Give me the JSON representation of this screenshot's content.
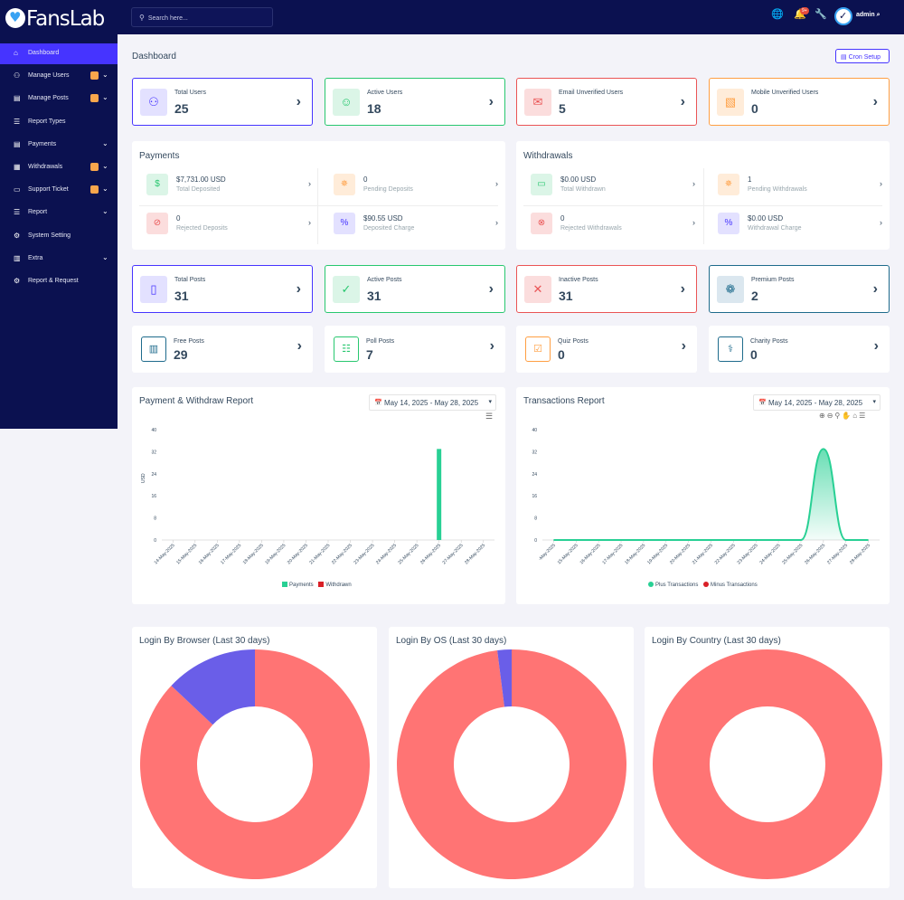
{
  "app": {
    "logo": "FansLab"
  },
  "header": {
    "search_placeholder": "Search here...",
    "notif_count": "9+",
    "user": "admin"
  },
  "sidebar": {
    "items": [
      {
        "label": "Dashboard",
        "icon": "home-icon",
        "active": true
      },
      {
        "label": "Manage Users",
        "icon": "users-icon",
        "badge": true,
        "chevron": true
      },
      {
        "label": "Manage Posts",
        "icon": "posts-icon",
        "badge": true,
        "chevron": true
      },
      {
        "label": "Report Types",
        "icon": "list-icon"
      },
      {
        "label": "Payments",
        "icon": "payments-icon",
        "chevron": true
      },
      {
        "label": "Withdrawals",
        "icon": "bank-icon",
        "badge": true,
        "chevron": true
      },
      {
        "label": "Support Ticket",
        "icon": "ticket-icon",
        "badge": true,
        "chevron": true
      },
      {
        "label": "Report",
        "icon": "report-icon",
        "chevron": true
      },
      {
        "label": "System Setting",
        "icon": "gear-icon"
      },
      {
        "label": "Extra",
        "icon": "extra-icon",
        "chevron": true
      },
      {
        "label": "Report & Request",
        "icon": "bug-icon"
      }
    ]
  },
  "page": {
    "title": "Dashboard",
    "cron_button": "Cron Setup"
  },
  "user_stats": [
    {
      "label": "Total Users",
      "value": "25",
      "color": "#4634ff",
      "bg": "#e3e1ff",
      "icon": "users-icon"
    },
    {
      "label": "Active Users",
      "value": "18",
      "color": "#28c76f",
      "bg": "#dbf5e7",
      "icon": "user-check-icon"
    },
    {
      "label": "Email Unverified Users",
      "value": "5",
      "color": "#ea5455",
      "bg": "#fbdddd",
      "icon": "envelope-icon"
    },
    {
      "label": "Mobile Unverified Users",
      "value": "0",
      "color": "#ff9f43",
      "bg": "#ffecd9",
      "icon": "mobile-off-icon"
    }
  ],
  "payments": {
    "title": "Payments",
    "items": [
      {
        "value": "$7,731.00 USD",
        "label": "Total Deposited",
        "color": "#28c76f",
        "bg": "#dbf5e7",
        "icon": "hand-money-icon"
      },
      {
        "value": "0",
        "label": "Pending Deposits",
        "color": "#ff9f43",
        "bg": "#ffecd9",
        "icon": "spinner-icon"
      },
      {
        "value": "0",
        "label": "Rejected Deposits",
        "color": "#ea5455",
        "bg": "#fbdddd",
        "icon": "ban-icon"
      },
      {
        "value": "$90.55 USD",
        "label": "Deposited Charge",
        "color": "#4634ff",
        "bg": "#e3e1ff",
        "icon": "percent-icon"
      }
    ]
  },
  "withdrawals": {
    "title": "Withdrawals",
    "items": [
      {
        "value": "$0.00 USD",
        "label": "Total Withdrawn",
        "color": "#28c76f",
        "bg": "#dbf5e7",
        "icon": "wallet-icon"
      },
      {
        "value": "1",
        "label": "Pending Withdrawals",
        "color": "#ff9f43",
        "bg": "#ffecd9",
        "icon": "spinner-icon"
      },
      {
        "value": "0",
        "label": "Rejected Withdrawals",
        "color": "#ea5455",
        "bg": "#fbdddd",
        "icon": "x-circle-icon"
      },
      {
        "value": "$0.00 USD",
        "label": "Withdrawal Charge",
        "color": "#4634ff",
        "bg": "#e3e1ff",
        "icon": "percent-icon"
      }
    ]
  },
  "post_stats": [
    {
      "label": "Total Posts",
      "value": "31",
      "color": "#4634ff",
      "bg": "#e3e1ff",
      "icon": "tablet-icon"
    },
    {
      "label": "Active Posts",
      "value": "31",
      "color": "#28c76f",
      "bg": "#dbf5e7",
      "icon": "double-check-icon"
    },
    {
      "label": "Inactive Posts",
      "value": "31",
      "color": "#ea5455",
      "bg": "#fbdddd",
      "icon": "x-icon"
    },
    {
      "label": "Premium Posts",
      "value": "2",
      "color": "#1e6b8c",
      "bg": "#dbe7ef",
      "icon": "award-icon"
    }
  ],
  "post_stats_small": [
    {
      "label": "Free Posts",
      "value": "29",
      "color": "#1e6b8c",
      "icon": "book-icon"
    },
    {
      "label": "Poll Posts",
      "value": "7",
      "color": "#28c76f",
      "icon": "poll-icon"
    },
    {
      "label": "Quiz Posts",
      "value": "0",
      "color": "#ff9f43",
      "icon": "check-square-icon"
    },
    {
      "label": "Charity Posts",
      "value": "0",
      "color": "#1e6b8c",
      "icon": "charity-icon"
    }
  ],
  "charts": {
    "payment_title": "Payment & Withdraw Report",
    "payment_range": "May 14, 2025 - May 28, 2025",
    "payment_ylabel": "USD",
    "payment_legend": [
      "Payments",
      "Withdrawn"
    ],
    "tx_title": "Transactions Report",
    "tx_range": "May 14, 2025 - May 28, 2025",
    "tx_legend": [
      "Plus Transactions",
      "Minus Transactions"
    ],
    "browser_title": "Login By Browser (Last 30 days)",
    "os_title": "Login By OS (Last 30 days)",
    "country_title": "Login By Country (Last 30 days)"
  },
  "chart_data": [
    {
      "type": "bar",
      "categories": [
        "14-May-2025",
        "15-May-2025",
        "16-May-2025",
        "17-May-2025",
        "18-May-2025",
        "19-May-2025",
        "20-May-2025",
        "21-May-2025",
        "22-May-2025",
        "23-May-2025",
        "24-May-2025",
        "25-May-2025",
        "26-May-2025",
        "27-May-2025",
        "28-May-2025"
      ],
      "series": [
        {
          "name": "Payments",
          "values": [
            0,
            0,
            0,
            0,
            0,
            0,
            0,
            0,
            0,
            0,
            0,
            0,
            33,
            0,
            0
          ],
          "color": "#28d094"
        },
        {
          "name": "Withdrawn",
          "values": [
            0,
            0,
            0,
            0,
            0,
            0,
            0,
            0,
            0,
            0,
            0,
            0,
            0,
            0,
            0
          ],
          "color": "#d92027"
        }
      ],
      "ylabel": "USD",
      "ylim": [
        0,
        40
      ],
      "yticks": [
        0,
        8,
        16,
        24,
        32,
        40
      ]
    },
    {
      "type": "area",
      "categories": [
        "14-May-2025",
        "15-May-2025",
        "16-May-2025",
        "17-May-2025",
        "18-May-2025",
        "19-May-2025",
        "20-May-2025",
        "21-May-2025",
        "22-May-2025",
        "23-May-2025",
        "24-May-2025",
        "25-May-2025",
        "26-May-2025",
        "27-May-2025",
        "28-May-2025"
      ],
      "tick_labels": [
        "-May-2025",
        "15-May-2025",
        "16-May-2025",
        "17-May-2025",
        "18-May-2025",
        "19-May-2025",
        "20-May-2025",
        "21-May-2025",
        "22-May-2025",
        "23-May-2025",
        "24-May-2025",
        "25-May-2025",
        "26-May-2025",
        "27-May-2025",
        "28-May-2025"
      ],
      "series": [
        {
          "name": "Plus Transactions",
          "values": [
            0,
            0,
            0,
            0,
            0,
            0,
            0,
            0,
            0,
            0,
            0,
            0,
            33,
            0,
            0
          ],
          "color": "#28d094"
        },
        {
          "name": "Minus Transactions",
          "values": [
            0,
            0,
            0,
            0,
            0,
            0,
            0,
            0,
            0,
            0,
            0,
            0,
            0,
            0,
            0
          ],
          "color": "#d92027"
        }
      ],
      "ylim": [
        0,
        40
      ],
      "yticks": [
        0,
        8,
        16,
        24,
        32,
        40
      ]
    },
    {
      "type": "pie",
      "title": "Login By Browser (Last 30 days)",
      "values": [
        87,
        13
      ],
      "colors": [
        "#ff7474",
        "#6a5ee8"
      ]
    },
    {
      "type": "pie",
      "title": "Login By OS (Last 30 days)",
      "values": [
        98,
        2
      ],
      "colors": [
        "#ff7474",
        "#6a5ee8"
      ]
    },
    {
      "type": "pie",
      "title": "Login By Country (Last 30 days)",
      "values": [
        100
      ],
      "colors": [
        "#ff7474"
      ]
    }
  ]
}
